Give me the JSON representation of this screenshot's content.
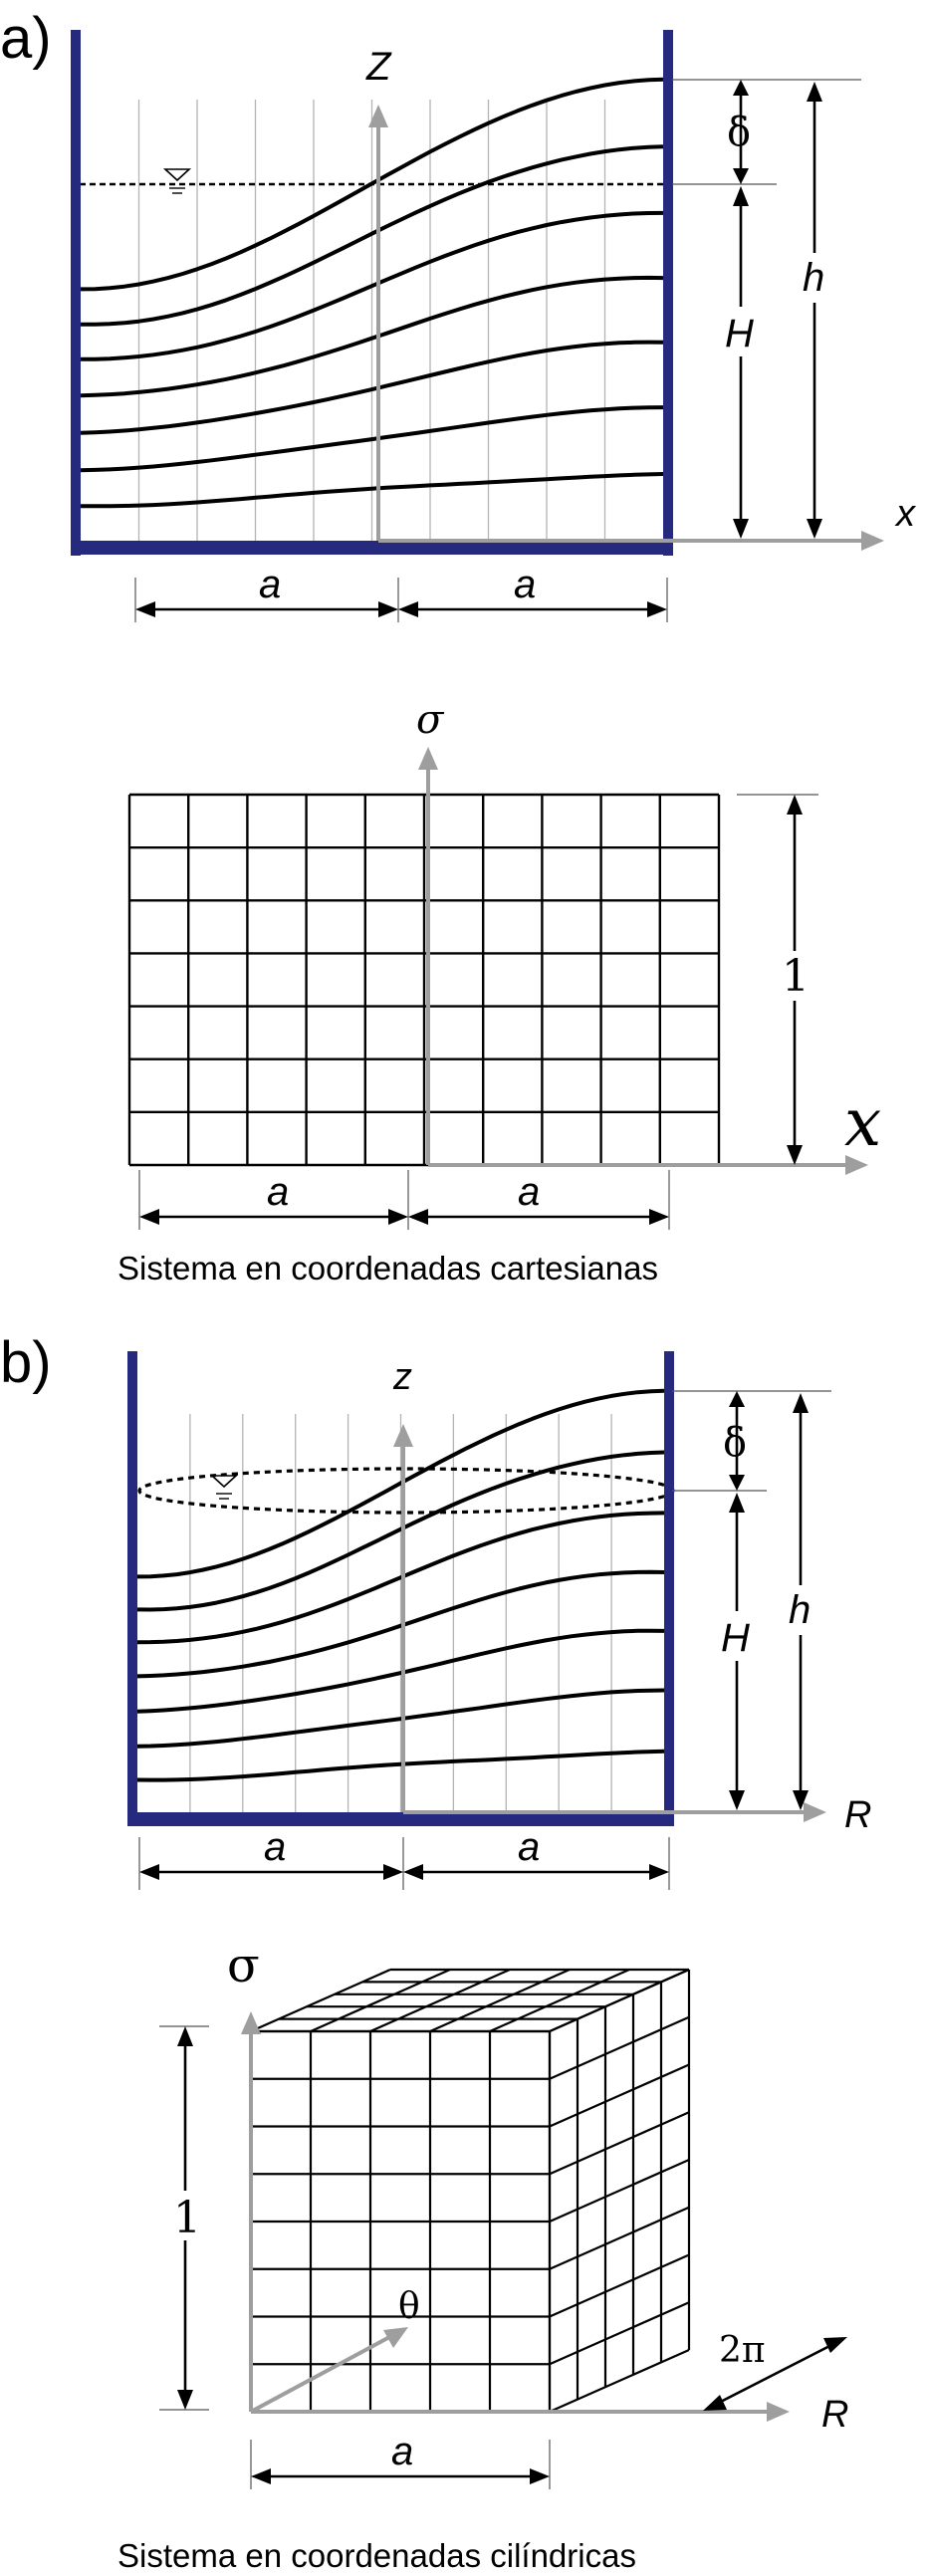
{
  "panel_a": {
    "tag": "a)",
    "axis_vertical": "Z",
    "axis_horizontal": "x",
    "dim_delta": "δ",
    "dim_h": "h",
    "dim_H": "H",
    "dim_a_left": "a",
    "dim_a_right": "a"
  },
  "sigma_grid": {
    "axis_vertical": "σ",
    "axis_horizontal": "x",
    "dim_one": "1",
    "dim_a_left": "a",
    "dim_a_right": "a",
    "caption": "Sistema en coordenadas cartesianas"
  },
  "panel_b": {
    "tag": "b)",
    "axis_vertical": "z",
    "axis_horizontal": "R",
    "dim_delta": "δ",
    "dim_h": "h",
    "dim_H": "H",
    "dim_a_left": "a",
    "dim_a_right": "a"
  },
  "cube": {
    "axis_vertical": "σ",
    "axis_theta": "θ",
    "axis_horizontal": "R",
    "dim_one": "1",
    "dim_two_pi": "2π",
    "dim_a": "a",
    "caption": "Sistema en coordenadas cilíndricas"
  },
  "colors": {
    "wall": "#262a7e",
    "axis_arrow": "#9e9e9e",
    "lines": "#000000"
  }
}
